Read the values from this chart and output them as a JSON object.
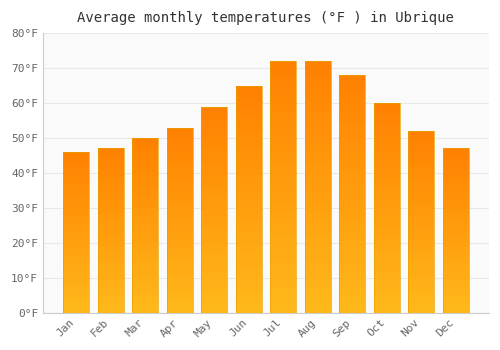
{
  "title": "Average monthly temperatures (°F ) in Ubrique",
  "months": [
    "Jan",
    "Feb",
    "Mar",
    "Apr",
    "May",
    "Jun",
    "Jul",
    "Aug",
    "Sep",
    "Oct",
    "Nov",
    "Dec"
  ],
  "values": [
    46,
    47,
    50,
    53,
    59,
    65,
    72,
    72,
    68,
    60,
    52,
    47
  ],
  "bar_color_light": "#FFD060",
  "bar_color_dark": "#FFA500",
  "bar_edge_color": "#E8A000",
  "ylim": [
    0,
    80
  ],
  "yticks": [
    0,
    10,
    20,
    30,
    40,
    50,
    60,
    70,
    80
  ],
  "background_color": "#FFFFFF",
  "plot_bg_color": "#FAFAFA",
  "grid_color": "#E8E8E8",
  "title_fontsize": 10,
  "tick_fontsize": 8,
  "font_family": "monospace"
}
